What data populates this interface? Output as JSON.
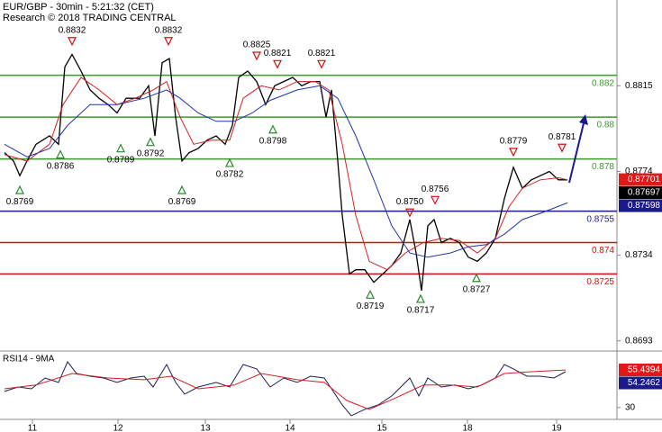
{
  "chart_data": [
    {
      "type": "line",
      "title": "EUR/GBP - 30min - 5:21:32 (CET)",
      "subtitle": "Research © 2018 TRADING CENTRAL",
      "xlim": [
        0,
        342.5
      ],
      "ylim": [
        0.8689,
        0.8856
      ],
      "yticks": [
        0.8815,
        0.8774,
        0.8734,
        0.8693
      ],
      "grid": false,
      "series": [
        {
          "color": "#000000",
          "x": [
            2.5,
            7.5,
            11,
            15,
            20,
            27.5,
            32.5,
            36,
            40,
            45,
            50,
            55,
            60,
            65,
            70,
            77.5,
            82.5,
            86,
            90,
            94,
            97.5,
            101,
            105,
            110,
            115,
            120,
            125,
            129,
            132.5,
            137.5,
            142.5,
            147.5,
            152.5,
            157.5,
            162.5,
            167.5,
            172.5,
            177.5,
            181,
            184,
            187.5,
            190,
            194,
            197.5,
            202.5,
            207.5,
            212.5,
            217.5,
            222.5,
            227.5,
            231,
            234,
            237.5,
            241,
            245,
            250,
            255,
            260,
            265,
            270,
            275,
            280,
            285,
            290,
            295,
            300,
            305,
            310,
            315
          ],
          "values": [
            0.8783,
            0.8779,
            0.8772,
            0.8779,
            0.8787,
            0.8791,
            0.8787,
            0.8824,
            0.883,
            0.8822,
            0.8813,
            0.8809,
            0.8806,
            0.8802,
            0.8809,
            0.8809,
            0.8815,
            0.8791,
            0.8826,
            0.8828,
            0.88,
            0.8779,
            0.8783,
            0.8785,
            0.8789,
            0.8791,
            0.8787,
            0.8796,
            0.8819,
            0.8822,
            0.8817,
            0.8806,
            0.8815,
            0.8817,
            0.8819,
            0.8815,
            0.8817,
            0.8817,
            0.88,
            0.8813,
            0.8779,
            0.8753,
            0.8725,
            0.8727,
            0.8727,
            0.8721,
            0.8725,
            0.8729,
            0.8735,
            0.8751,
            0.8735,
            0.8717,
            0.8748,
            0.8751,
            0.874,
            0.8742,
            0.874,
            0.8733,
            0.8731,
            0.8735,
            0.8742,
            0.8761,
            0.8776,
            0.8766,
            0.877,
            0.8772,
            0.8774,
            0.877,
            0.877
          ]
        },
        {
          "color": "#d42020",
          "x": [
            2.5,
            15,
            27.5,
            35,
            45,
            55,
            65,
            75,
            85,
            92.5,
            100,
            107.5,
            117.5,
            127.5,
            135,
            145,
            155,
            165,
            175,
            182.5,
            190,
            197.5,
            205,
            215,
            225,
            235,
            245,
            255,
            265,
            275,
            282.5,
            290,
            300,
            310,
            315
          ],
          "values": [
            0.8782,
            0.8779,
            0.8787,
            0.8806,
            0.8819,
            0.8813,
            0.8806,
            0.8809,
            0.8813,
            0.8817,
            0.88,
            0.8787,
            0.8789,
            0.8789,
            0.8809,
            0.8815,
            0.8813,
            0.8817,
            0.8817,
            0.8813,
            0.8787,
            0.8753,
            0.8731,
            0.8727,
            0.8735,
            0.874,
            0.8742,
            0.8741,
            0.8735,
            0.8742,
            0.8757,
            0.8766,
            0.877,
            0.8771,
            0.877
          ]
        },
        {
          "color": "#2333a8",
          "x": [
            2.5,
            15,
            27.5,
            37.5,
            50,
            65,
            80,
            92.5,
            100,
            110,
            120,
            130,
            140,
            150,
            165,
            177.5,
            187.5,
            197.5,
            207.5,
            217.5,
            227.5,
            237.5,
            250,
            260,
            270,
            280,
            290,
            300,
            315
          ],
          "values": [
            0.8787,
            0.8781,
            0.8785,
            0.8796,
            0.8806,
            0.8806,
            0.8809,
            0.8813,
            0.8809,
            0.8802,
            0.8798,
            0.8798,
            0.8802,
            0.8808,
            0.8813,
            0.8815,
            0.8809,
            0.8791,
            0.877,
            0.8748,
            0.8735,
            0.8733,
            0.8735,
            0.8738,
            0.8739,
            0.8744,
            0.8751,
            0.8754,
            0.8759
          ]
        }
      ],
      "levels": [
        {
          "value": 0.882,
          "color": "#3a9a2a"
        },
        {
          "value": 0.88,
          "color": "#3a9a2a"
        },
        {
          "value": 0.878,
          "color": "#3a9a2a"
        },
        {
          "value": 0.8755,
          "color": "#1a1a8c"
        },
        {
          "value": 0.874,
          "color": "#d01010"
        },
        {
          "value": 0.8725,
          "color": "#d01010"
        }
      ],
      "annotations": [
        {
          "x": 40,
          "value": 0.8832,
          "label": "0.8832",
          "kind": "high"
        },
        {
          "x": 93.5,
          "value": 0.8832,
          "label": "0.8832",
          "kind": "high"
        },
        {
          "x": 142.5,
          "value": 0.8825,
          "label": "0.8825",
          "kind": "high"
        },
        {
          "x": 154,
          "value": 0.8821,
          "label": "0.8821",
          "kind": "high"
        },
        {
          "x": 178.5,
          "value": 0.8821,
          "label": "0.8821",
          "kind": "high"
        },
        {
          "x": 227.5,
          "value": 0.875,
          "label": "0.8750",
          "kind": "high"
        },
        {
          "x": 241.5,
          "value": 0.8756,
          "label": "0.8756",
          "kind": "high"
        },
        {
          "x": 285,
          "value": 0.8779,
          "label": "0.8779",
          "kind": "high"
        },
        {
          "x": 312,
          "value": 0.8781,
          "label": "0.8781",
          "kind": "high"
        },
        {
          "x": 11,
          "value": 0.8769,
          "label": "0.8769",
          "kind": "low"
        },
        {
          "x": 33.5,
          "value": 0.8786,
          "label": "0.8786",
          "kind": "low"
        },
        {
          "x": 67,
          "value": 0.8789,
          "label": "0.8789",
          "kind": "low"
        },
        {
          "x": 83.5,
          "value": 0.8792,
          "label": "0.8792",
          "kind": "low"
        },
        {
          "x": 101,
          "value": 0.8769,
          "label": "0.8769",
          "kind": "low"
        },
        {
          "x": 127.5,
          "value": 0.8782,
          "label": "0.8782",
          "kind": "low"
        },
        {
          "x": 151.5,
          "value": 0.8798,
          "label": "0.8798",
          "kind": "low"
        },
        {
          "x": 205.5,
          "value": 0.8719,
          "label": "0.8719",
          "kind": "low"
        },
        {
          "x": 233.5,
          "value": 0.8717,
          "label": "0.8717",
          "kind": "low"
        },
        {
          "x": 264.5,
          "value": 0.8727,
          "label": "0.8727",
          "kind": "low"
        }
      ],
      "last_values": [
        {
          "value": 0.87701,
          "color": "#e01818"
        },
        {
          "value": 0.87697,
          "color": "#000000"
        },
        {
          "value": 0.87598,
          "color": "#1a1a8c"
        }
      ]
    },
    {
      "type": "line",
      "title": "RSI14 - 9MA",
      "xlim": [
        0,
        342.5
      ],
      "xticks": [
        {
          "value": 18,
          "label": "11"
        },
        {
          "value": 65.5,
          "label": "12"
        },
        {
          "value": 114,
          "label": "13"
        },
        {
          "value": 161,
          "label": "14"
        },
        {
          "value": 212,
          "label": "15"
        },
        {
          "value": 259.5,
          "label": "18"
        },
        {
          "value": 309,
          "label": "19"
        }
      ],
      "ylim": [
        22,
        67
      ],
      "yticks": [
        30
      ],
      "series": [
        {
          "color": "#1c1c5a",
          "x": [
            2.5,
            10,
            17.5,
            25,
            32.5,
            37.5,
            42.5,
            50,
            57.5,
            65,
            72.5,
            80,
            85,
            92.5,
            97.5,
            102.5,
            110,
            120,
            127.5,
            135,
            142.5,
            150,
            157.5,
            165,
            172.5,
            180,
            185,
            190,
            195,
            202.5,
            210,
            217.5,
            222.5,
            227.5,
            232.5,
            237.5,
            245,
            252.5,
            260,
            267.5,
            275,
            280,
            285,
            292.5,
            300,
            307.5,
            314
          ],
          "values": [
            40.9,
            43.9,
            42.7,
            50,
            47,
            60.9,
            53,
            51.2,
            50,
            47,
            50,
            51.2,
            43.9,
            59.1,
            47,
            39.1,
            43.9,
            47,
            43.9,
            59.1,
            56.1,
            43.9,
            50,
            47,
            51.2,
            50,
            40.9,
            31.8,
            24.5,
            28.8,
            31.8,
            37.9,
            43.9,
            50,
            37.9,
            50,
            43.9,
            45.2,
            42.7,
            45.2,
            50,
            59.1,
            56.1,
            51.2,
            51.2,
            50,
            54.2
          ]
        },
        {
          "color": "#d42020",
          "x": [
            2.5,
            20,
            40,
            60,
            80,
            95,
            110,
            130,
            145,
            165,
            180,
            192.5,
            205,
            220,
            235,
            250,
            265,
            280,
            295,
            314
          ],
          "values": [
            42.7,
            45.2,
            53,
            50,
            48.8,
            51.2,
            42.7,
            45.2,
            53,
            48.8,
            47,
            34.8,
            28.8,
            36.7,
            45.2,
            45.2,
            43.9,
            53,
            54.2,
            55.4
          ]
        }
      ],
      "last_values": [
        {
          "value": 55.4394,
          "color": "#e01818"
        },
        {
          "value": 54.2462,
          "color": "#1a1a8c"
        }
      ]
    }
  ]
}
